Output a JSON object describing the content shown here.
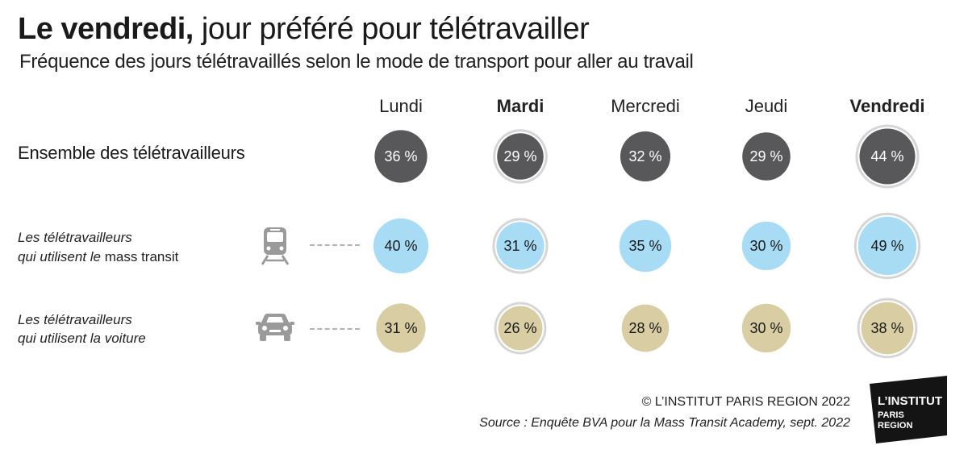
{
  "title": {
    "bold": "Le vendredi,",
    "rest": " jour préféré pour télétravailler"
  },
  "subtitle": "Fréquence des jours télétravaillés selon le mode de transport pour aller au travail",
  "chart_data": {
    "type": "bubble-table",
    "title": "Le vendredi, jour préféré pour télétravailler",
    "subtitle": "Fréquence des jours télétravaillés selon le mode de transport pour aller au travail",
    "categories": [
      "Lundi",
      "Mardi",
      "Mercredi",
      "Jeudi",
      "Vendredi"
    ],
    "bold_categories": [
      "Mardi",
      "Vendredi"
    ],
    "unit": "%",
    "series": [
      {
        "name": "Ensemble des télétravailleurs",
        "values": [
          36,
          29,
          32,
          29,
          44
        ],
        "color": "#58585a",
        "text_color": "#ffffff"
      },
      {
        "name": "Les télétravailleurs qui utilisent le mass transit",
        "values": [
          40,
          31,
          35,
          30,
          49
        ],
        "color": "#a8dcf5",
        "text_color": "#1a1a1a"
      },
      {
        "name": "Les télétravailleurs qui utilisent la voiture",
        "values": [
          31,
          26,
          28,
          30,
          38
        ],
        "color": "#d9cda3",
        "text_color": "#1a1a1a"
      }
    ],
    "highlighted_days": [
      "Mardi",
      "Vendredi"
    ]
  },
  "labels": {
    "day0": "Lundi",
    "day1": "Mardi",
    "day2": "Mercredi",
    "day3": "Jeudi",
    "day4": "Vendredi",
    "row_all": "Ensemble des télétravailleurs",
    "row_transit_l1": "Les télétravailleurs",
    "row_transit_l2a": "qui utilisent le",
    "row_transit_l2b": " mass transit",
    "row_car_l1": "Les télétravailleurs",
    "row_car_l2": "qui utilisent la voiture"
  },
  "icons": {
    "transit": "train-icon",
    "car": "car-icon"
  },
  "footer": {
    "copyright": "© L’INSTITUT PARIS REGION 2022",
    "source": "Source :  Enquête BVA pour la Mass Transit  Academy, sept. 2022"
  },
  "logo": {
    "line1": "L’INSTITUT",
    "line2": "PARIS",
    "line3": "REGION"
  }
}
